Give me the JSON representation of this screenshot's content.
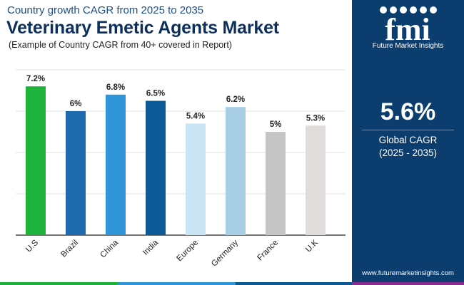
{
  "header": {
    "subtitle": "Country growth CAGR from 2025 to 2035",
    "title": "Veterinary Emetic Agents Market",
    "note": "(Example of Country CAGR from 40+ covered in Report)"
  },
  "chart_data": {
    "type": "bar",
    "title": "Veterinary Emetic Agents Market",
    "xlabel": "",
    "ylabel": "",
    "categories": [
      "U.S",
      "Brazil",
      "China",
      "India",
      "Europe",
      "Germany",
      "France",
      "U.K"
    ],
    "values": [
      7.2,
      6,
      6.8,
      6.5,
      5.4,
      6.2,
      5,
      5.3
    ],
    "value_labels": [
      "7.2%",
      "6%",
      "6.8%",
      "6.5%",
      "5.4%",
      "6.2%",
      "5%",
      "5.3%"
    ],
    "colors": [
      "#1db33a",
      "#1f6aad",
      "#2f95d8",
      "#0b5a96",
      "#c9e4f5",
      "#a9cfe6",
      "#c5c5c5",
      "#e0dcdc"
    ],
    "ylim": [
      0,
      8
    ],
    "grid": true,
    "legend": "none"
  },
  "sidebar": {
    "logo_text": "fmi",
    "logo_tagline": "Future Market Insights",
    "global_value": "5.6%",
    "global_label": "Global CAGR",
    "global_period": "(2025 - 2035)",
    "website": "www.futuremarketinsights.com"
  },
  "palette": {
    "panel": "#0b3d6e",
    "title": "#0d2f5e",
    "strip": [
      "#1db33a",
      "#2f95d8",
      "#0b5a96",
      "#8a2c8f"
    ]
  }
}
